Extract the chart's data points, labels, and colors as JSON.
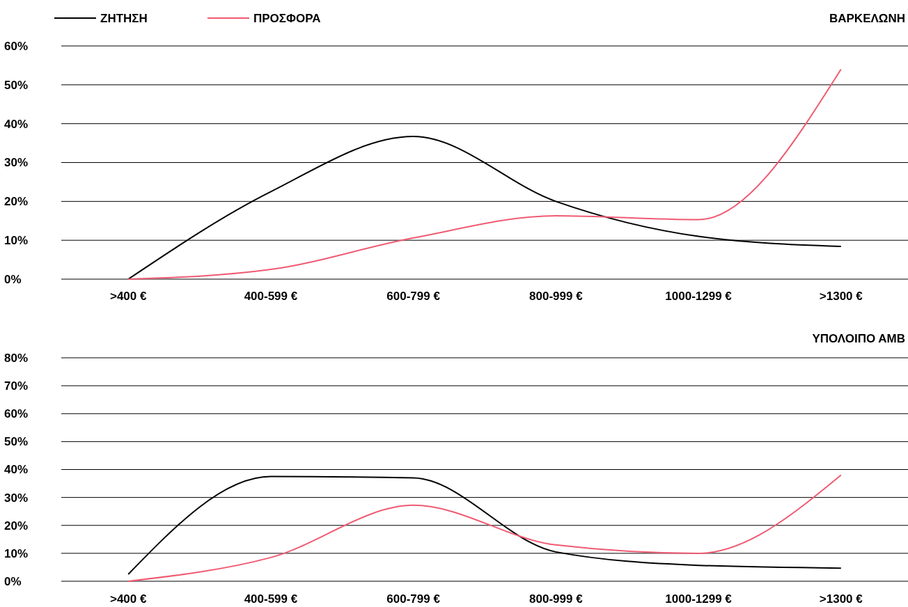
{
  "chart_data": [
    {
      "type": "line",
      "title": "ΒΑΡΚΕΛΩΝΗ",
      "categories": [
        ">400 €",
        "400-599 €",
        "600-799 €",
        "800-999 €",
        "1000-1299 €",
        ">1300 €"
      ],
      "series": [
        {
          "name": "ΖΗΤΗΣΗ",
          "color": "#000000",
          "values": [
            0,
            22.5,
            36.7,
            20,
            11,
            8.4
          ]
        },
        {
          "name": "ΠΡΟΣΦΟΡΑ",
          "color": "#ef5b72",
          "values": [
            0,
            2.5,
            10.6,
            16.3,
            15.3,
            54
          ]
        }
      ],
      "ylim": [
        0,
        60
      ],
      "yticks": [
        {
          "value": 0,
          "label": "0%"
        },
        {
          "value": 10,
          "label": "10%"
        },
        {
          "value": 20,
          "label": "20%"
        },
        {
          "value": 30,
          "label": "30%"
        },
        {
          "value": 40,
          "label": "40%"
        },
        {
          "value": 50,
          "label": "50%"
        },
        {
          "value": 60,
          "label": "60%"
        }
      ],
      "grid": "y",
      "legend": "top left",
      "marker": "none",
      "line_style": "solid"
    },
    {
      "type": "line",
      "title": "ΥΠΟΛΟΙΠΟ ΑΜΒ",
      "categories": [
        ">400 €",
        "400-599 €",
        "600-799 €",
        "800-999 €",
        "1000-1299 €",
        ">1300 €"
      ],
      "series": [
        {
          "color": "#000000",
          "values": [
            2.5,
            37.5,
            37,
            10.5,
            5.7,
            4.7
          ]
        },
        {
          "color": "#ef5b72",
          "values": [
            0,
            8.5,
            27.2,
            13,
            10,
            38
          ]
        }
      ],
      "ylim": [
        0,
        80
      ],
      "yticks": [
        {
          "value": 0,
          "label": "0%"
        },
        {
          "value": 10,
          "label": "10%"
        },
        {
          "value": 20,
          "label": "20%"
        },
        {
          "value": 30,
          "label": "30%"
        },
        {
          "value": 40,
          "label": "40%"
        },
        {
          "value": 50,
          "label": "50%"
        },
        {
          "value": 60,
          "label": "60%"
        },
        {
          "value": 70,
          "label": "70%"
        },
        {
          "value": 80,
          "label": "80%"
        }
      ],
      "grid": "y",
      "marker": "none",
      "line_style": "solid"
    }
  ]
}
